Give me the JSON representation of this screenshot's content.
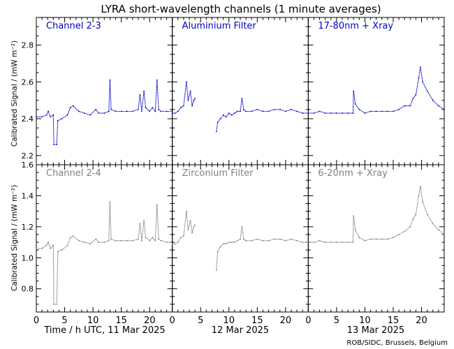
{
  "title": "LYRA short-wavelength channels (1 minute averages)",
  "credit": "ROB/SIDC, Brussels, Belgium",
  "colors": {
    "top": "#0000c8",
    "bottom": "#808080",
    "axis": "#000000"
  },
  "chart_data": {
    "type": "scatter",
    "title": "LYRA short-wavelength channels (1 minute averages)",
    "xlabel": "Time / h UTC, 11 Mar 2025",
    "day_labels": [
      "12 Mar 2025",
      "13 Mar 2025"
    ],
    "ylabel": "Calibrated Signal / (mW m⁻²)",
    "xlim": [
      0,
      24
    ],
    "x_ticks": [
      0,
      5,
      10,
      15,
      20
    ],
    "rows": [
      {
        "ylim": [
          2.15,
          2.95
        ],
        "y_ticks": [
          2.2,
          2.4,
          2.6,
          2.8
        ],
        "color": "#0000c8",
        "panels": [
          {
            "name": "Channel 2-3",
            "points": [
              [
                0,
                2.41
              ],
              [
                1,
                2.41
              ],
              [
                1.8,
                2.42
              ],
              [
                2.1,
                2.44
              ],
              [
                2.5,
                2.41
              ],
              [
                3,
                2.42
              ],
              [
                3.1,
                2.26
              ],
              [
                3.6,
                2.26
              ],
              [
                3.8,
                2.39
              ],
              [
                4.5,
                2.4
              ],
              [
                5.5,
                2.42
              ],
              [
                6,
                2.46
              ],
              [
                6.5,
                2.47
              ],
              [
                7.5,
                2.44
              ],
              [
                8.5,
                2.43
              ],
              [
                9.5,
                2.42
              ],
              [
                10.5,
                2.45
              ],
              [
                11,
                2.43
              ],
              [
                12,
                2.43
              ],
              [
                12.8,
                2.44
              ],
              [
                13,
                2.61
              ],
              [
                13.2,
                2.45
              ],
              [
                14,
                2.44
              ],
              [
                15,
                2.44
              ],
              [
                16,
                2.44
              ],
              [
                17,
                2.44
              ],
              [
                18,
                2.45
              ],
              [
                18.3,
                2.53
              ],
              [
                18.6,
                2.44
              ],
              [
                19,
                2.55
              ],
              [
                19.3,
                2.46
              ],
              [
                20,
                2.44
              ],
              [
                20.5,
                2.46
              ],
              [
                21,
                2.44
              ],
              [
                21.3,
                2.61
              ],
              [
                21.6,
                2.45
              ],
              [
                22,
                2.44
              ],
              [
                23,
                2.44
              ],
              [
                24,
                2.44
              ]
            ]
          },
          {
            "name": "Aluminium Filter",
            "points": [
              [
                0,
                2.43
              ],
              [
                0.5,
                2.43
              ],
              [
                1,
                2.44
              ],
              [
                1.5,
                2.46
              ],
              [
                2,
                2.47
              ],
              [
                2.5,
                2.6
              ],
              [
                2.8,
                2.5
              ],
              [
                3.2,
                2.55
              ],
              [
                3.5,
                2.47
              ],
              [
                3.8,
                2.5
              ],
              [
                4,
                2.51
              ],
              [
                7.8,
                2.33
              ],
              [
                8,
                2.38
              ],
              [
                8.5,
                2.4
              ],
              [
                9,
                2.42
              ],
              [
                9.5,
                2.41
              ],
              [
                10,
                2.43
              ],
              [
                10.5,
                2.42
              ],
              [
                11,
                2.43
              ],
              [
                11.5,
                2.44
              ],
              [
                12,
                2.44
              ],
              [
                12.3,
                2.51
              ],
              [
                12.6,
                2.45
              ],
              [
                13,
                2.44
              ],
              [
                14,
                2.44
              ],
              [
                15,
                2.45
              ],
              [
                16,
                2.44
              ],
              [
                17,
                2.44
              ],
              [
                18,
                2.45
              ],
              [
                19,
                2.45
              ],
              [
                20,
                2.44
              ],
              [
                21,
                2.45
              ],
              [
                22,
                2.44
              ],
              [
                23,
                2.43
              ],
              [
                24,
                2.43
              ]
            ]
          },
          {
            "name": "17-80nm + Xray",
            "points": [
              [
                0,
                2.43
              ],
              [
                1,
                2.43
              ],
              [
                2,
                2.44
              ],
              [
                3,
                2.43
              ],
              [
                4,
                2.43
              ],
              [
                5,
                2.43
              ],
              [
                6,
                2.43
              ],
              [
                7,
                2.43
              ],
              [
                7.9,
                2.43
              ],
              [
                8,
                2.55
              ],
              [
                8.3,
                2.48
              ],
              [
                9,
                2.45
              ],
              [
                10,
                2.43
              ],
              [
                11,
                2.44
              ],
              [
                12,
                2.44
              ],
              [
                13,
                2.44
              ],
              [
                14,
                2.44
              ],
              [
                15,
                2.44
              ],
              [
                16,
                2.45
              ],
              [
                17,
                2.47
              ],
              [
                18,
                2.47
              ],
              [
                18.5,
                2.51
              ],
              [
                19,
                2.53
              ],
              [
                19.5,
                2.62
              ],
              [
                19.8,
                2.68
              ],
              [
                20.2,
                2.6
              ],
              [
                21,
                2.55
              ],
              [
                22,
                2.5
              ],
              [
                23,
                2.47
              ],
              [
                24,
                2.45
              ]
            ]
          }
        ]
      },
      {
        "ylim": [
          0.65,
          1.6
        ],
        "y_ticks": [
          0.8,
          1.0,
          1.2,
          1.4,
          1.6
        ],
        "color": "#808080",
        "panels": [
          {
            "name": "Channel 2-4",
            "points": [
              [
                0,
                1.06
              ],
              [
                1,
                1.06
              ],
              [
                1.8,
                1.08
              ],
              [
                2.1,
                1.1
              ],
              [
                2.5,
                1.06
              ],
              [
                3,
                1.08
              ],
              [
                3.1,
                0.7
              ],
              [
                3.6,
                0.7
              ],
              [
                3.8,
                1.04
              ],
              [
                4.5,
                1.05
              ],
              [
                5.5,
                1.08
              ],
              [
                6,
                1.13
              ],
              [
                6.5,
                1.14
              ],
              [
                7.5,
                1.11
              ],
              [
                8.5,
                1.1
              ],
              [
                9.5,
                1.09
              ],
              [
                10.5,
                1.12
              ],
              [
                11,
                1.1
              ],
              [
                12,
                1.1
              ],
              [
                12.8,
                1.11
              ],
              [
                13,
                1.36
              ],
              [
                13.2,
                1.12
              ],
              [
                14,
                1.11
              ],
              [
                15,
                1.11
              ],
              [
                16,
                1.11
              ],
              [
                17,
                1.11
              ],
              [
                18,
                1.12
              ],
              [
                18.3,
                1.22
              ],
              [
                18.6,
                1.11
              ],
              [
                19,
                1.24
              ],
              [
                19.3,
                1.13
              ],
              [
                20,
                1.11
              ],
              [
                20.5,
                1.13
              ],
              [
                21,
                1.11
              ],
              [
                21.3,
                1.34
              ],
              [
                21.6,
                1.12
              ],
              [
                22,
                1.11
              ],
              [
                23,
                1.1
              ],
              [
                24,
                1.1
              ]
            ]
          },
          {
            "name": "Zirconium Filter",
            "points": [
              [
                0,
                1.09
              ],
              [
                0.5,
                1.09
              ],
              [
                1,
                1.1
              ],
              [
                1.5,
                1.13
              ],
              [
                2,
                1.14
              ],
              [
                2.5,
                1.3
              ],
              [
                2.8,
                1.18
              ],
              [
                3.2,
                1.24
              ],
              [
                3.5,
                1.16
              ],
              [
                3.8,
                1.2
              ],
              [
                4,
                1.21
              ],
              [
                7.8,
                0.92
              ],
              [
                8,
                1.04
              ],
              [
                8.5,
                1.07
              ],
              [
                9,
                1.09
              ],
              [
                9.5,
                1.09
              ],
              [
                10,
                1.1
              ],
              [
                10.5,
                1.1
              ],
              [
                11,
                1.1
              ],
              [
                11.5,
                1.11
              ],
              [
                12,
                1.12
              ],
              [
                12.3,
                1.2
              ],
              [
                12.6,
                1.12
              ],
              [
                13,
                1.11
              ],
              [
                14,
                1.11
              ],
              [
                15,
                1.12
              ],
              [
                16,
                1.11
              ],
              [
                17,
                1.11
              ],
              [
                18,
                1.12
              ],
              [
                19,
                1.12
              ],
              [
                20,
                1.11
              ],
              [
                21,
                1.12
              ],
              [
                22,
                1.11
              ],
              [
                23,
                1.1
              ],
              [
                24,
                1.1
              ]
            ]
          },
          {
            "name": "6-20nm + Xray",
            "points": [
              [
                0,
                1.1
              ],
              [
                1,
                1.1
              ],
              [
                2,
                1.11
              ],
              [
                3,
                1.1
              ],
              [
                4,
                1.1
              ],
              [
                5,
                1.1
              ],
              [
                6,
                1.1
              ],
              [
                7,
                1.1
              ],
              [
                7.9,
                1.1
              ],
              [
                8,
                1.27
              ],
              [
                8.3,
                1.18
              ],
              [
                9,
                1.13
              ],
              [
                10,
                1.11
              ],
              [
                11,
                1.12
              ],
              [
                12,
                1.12
              ],
              [
                13,
                1.12
              ],
              [
                14,
                1.12
              ],
              [
                15,
                1.13
              ],
              [
                16,
                1.15
              ],
              [
                17,
                1.17
              ],
              [
                18,
                1.2
              ],
              [
                18.5,
                1.25
              ],
              [
                19,
                1.28
              ],
              [
                19.5,
                1.4
              ],
              [
                19.8,
                1.46
              ],
              [
                20.2,
                1.36
              ],
              [
                21,
                1.28
              ],
              [
                22,
                1.22
              ],
              [
                23,
                1.18
              ],
              [
                24,
                1.15
              ]
            ]
          }
        ]
      }
    ]
  }
}
